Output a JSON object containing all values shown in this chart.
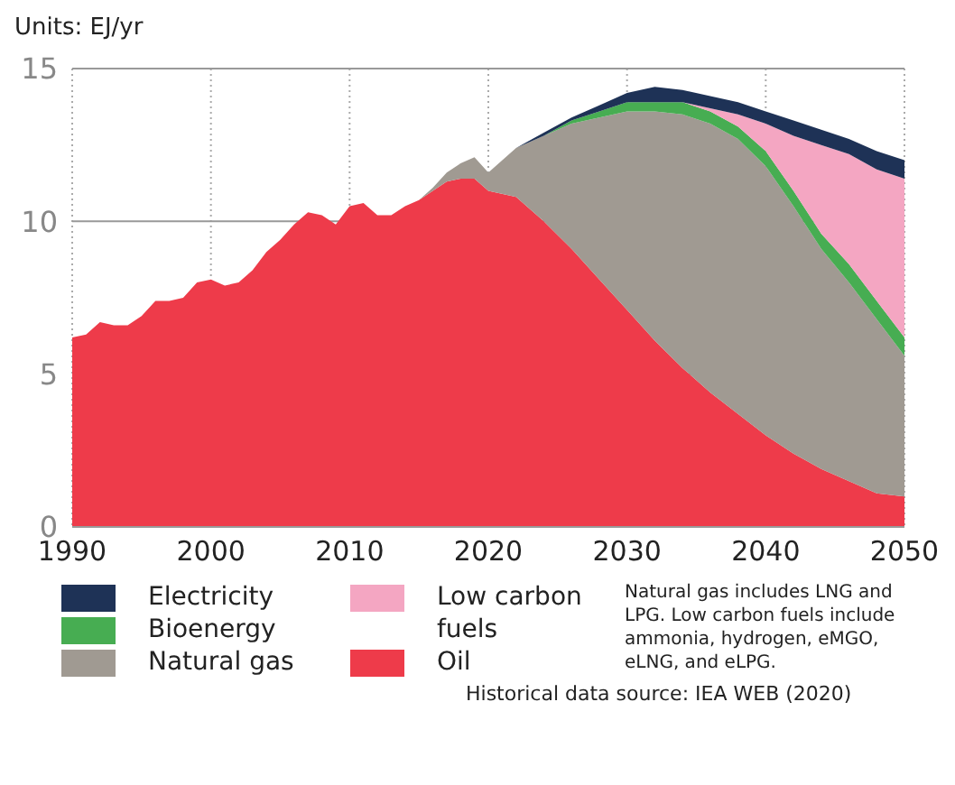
{
  "chart_data": {
    "type": "area",
    "stacked": true,
    "ylabel": "Units: EJ/yr",
    "x": [
      1990,
      1991,
      1992,
      1993,
      1994,
      1995,
      1996,
      1997,
      1998,
      1999,
      2000,
      2001,
      2002,
      2003,
      2004,
      2005,
      2006,
      2007,
      2008,
      2009,
      2010,
      2011,
      2012,
      2013,
      2014,
      2015,
      2016,
      2017,
      2018,
      2019,
      2020,
      2022,
      2024,
      2026,
      2028,
      2030,
      2032,
      2034,
      2036,
      2038,
      2040,
      2042,
      2044,
      2046,
      2048,
      2050
    ],
    "series": [
      {
        "name": "Oil",
        "color": "#ee3b4a",
        "values": [
          6.2,
          6.3,
          6.7,
          6.6,
          6.6,
          6.9,
          7.4,
          7.4,
          7.5,
          8.0,
          8.1,
          7.9,
          8.0,
          8.4,
          9.0,
          9.4,
          9.9,
          10.3,
          10.2,
          9.9,
          10.5,
          10.6,
          10.2,
          10.2,
          10.5,
          10.7,
          11.0,
          11.3,
          11.4,
          11.4,
          11.0,
          10.8,
          10.0,
          9.1,
          8.1,
          7.1,
          6.1,
          5.2,
          4.4,
          3.7,
          3.0,
          2.4,
          1.9,
          1.5,
          1.1,
          1.0
        ]
      },
      {
        "name": "Natural gas",
        "color": "#a09a92",
        "values": [
          0,
          0,
          0,
          0,
          0,
          0,
          0,
          0,
          0,
          0,
          0,
          0,
          0,
          0,
          0,
          0,
          0,
          0,
          0,
          0,
          0,
          0,
          0,
          0,
          0,
          0,
          0.1,
          0.3,
          0.5,
          0.7,
          0.6,
          1.6,
          2.8,
          4.1,
          5.3,
          6.5,
          7.5,
          8.3,
          8.8,
          9.0,
          8.8,
          8.1,
          7.2,
          6.5,
          5.7,
          4.6
        ]
      },
      {
        "name": "Bioenergy",
        "color": "#47ad52",
        "values": [
          0,
          0,
          0,
          0,
          0,
          0,
          0,
          0,
          0,
          0,
          0,
          0,
          0,
          0,
          0,
          0,
          0,
          0,
          0,
          0,
          0,
          0,
          0,
          0,
          0,
          0,
          0,
          0,
          0,
          0,
          0,
          0,
          0,
          0.1,
          0.2,
          0.3,
          0.3,
          0.4,
          0.4,
          0.4,
          0.5,
          0.5,
          0.5,
          0.6,
          0.6,
          0.6
        ]
      },
      {
        "name": "Low carbon fuels",
        "color": "#f4a6c2",
        "values": [
          0,
          0,
          0,
          0,
          0,
          0,
          0,
          0,
          0,
          0,
          0,
          0,
          0,
          0,
          0,
          0,
          0,
          0,
          0,
          0,
          0,
          0,
          0,
          0,
          0,
          0,
          0,
          0,
          0,
          0,
          0,
          0,
          0,
          0,
          0,
          0,
          0,
          0,
          0.1,
          0.4,
          0.9,
          1.8,
          2.9,
          3.6,
          4.3,
          5.2
        ]
      },
      {
        "name": "Electricity",
        "color": "#1e3256",
        "values": [
          0,
          0,
          0,
          0,
          0,
          0,
          0,
          0,
          0,
          0,
          0,
          0,
          0,
          0,
          0,
          0,
          0,
          0,
          0,
          0,
          0,
          0,
          0,
          0,
          0,
          0,
          0,
          0,
          0,
          0,
          0,
          0,
          0.1,
          0.1,
          0.2,
          0.3,
          0.5,
          0.4,
          0.4,
          0.4,
          0.4,
          0.5,
          0.5,
          0.5,
          0.6,
          0.6
        ]
      }
    ],
    "xlim": [
      1990,
      2050
    ],
    "xticks": [
      1990,
      2000,
      2010,
      2020,
      2030,
      2040,
      2050
    ],
    "ylim": [
      0,
      15
    ],
    "yticks": [
      0,
      5,
      10,
      15
    ],
    "grid": true,
    "legend": "bottom",
    "annotations": [
      "Natural gas includes LNG and LPG. Low carbon fuels include ammonia, hydrogen, eMGO, eLNG, and eLPG.",
      "Historical data source: IEA WEB (2020)"
    ]
  }
}
